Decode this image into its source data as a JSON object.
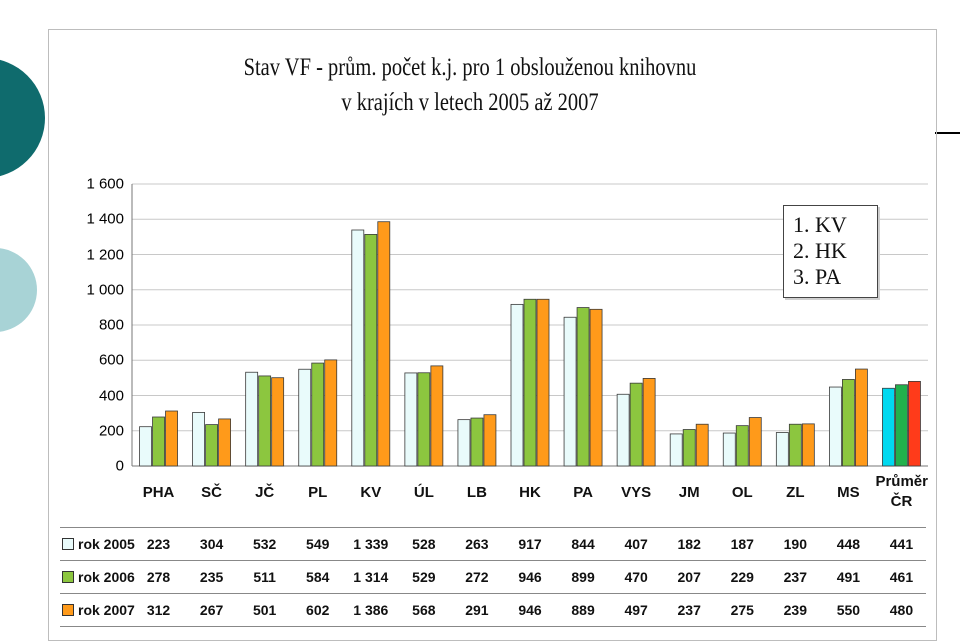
{
  "slide": {
    "title_line1": "Stav VF - prům. počet k.j. pro 1 obslouženou knihovnu",
    "title_line2": "v krajích v letech 2005 až 2007"
  },
  "ranking": [
    "1.  KV",
    "2.  HK",
    "3.  PA"
  ],
  "chart_data": {
    "type": "bar",
    "title": "Stav VF - prům. počet k.j. pro 1 obslouženou knihovnu v krajích v letech 2005 až 2007",
    "categories": [
      "PHA",
      "SČ",
      "JČ",
      "PL",
      "KV",
      "ÚL",
      "LB",
      "HK",
      "PA",
      "VYS",
      "JM",
      "OL",
      "ZL",
      "MS",
      "Průměr ČR"
    ],
    "y_ticks": [
      "0",
      "200",
      "400",
      "600",
      "800",
      "1 000",
      "1 200",
      "1 400",
      "1 600"
    ],
    "ylim": [
      0,
      1600
    ],
    "grid": true,
    "legend_placement": "data-table",
    "series": [
      {
        "name": "rok 2005",
        "color": "#e9fbfb",
        "avg_color": "#00d9f0",
        "values": [
          223,
          304,
          532,
          549,
          1339,
          528,
          263,
          917,
          844,
          407,
          182,
          187,
          190,
          448,
          441
        ],
        "labels": [
          "223",
          "304",
          "532",
          "549",
          "1 339",
          "528",
          "263",
          "917",
          "844",
          "407",
          "182",
          "187",
          "190",
          "448",
          "441"
        ]
      },
      {
        "name": "rok 2006",
        "color": "#8cc63f",
        "avg_color": "#22b14c",
        "values": [
          278,
          235,
          511,
          584,
          1314,
          529,
          272,
          946,
          899,
          470,
          207,
          229,
          237,
          491,
          461
        ],
        "labels": [
          "278",
          "235",
          "511",
          "584",
          "1 314",
          "529",
          "272",
          "946",
          "899",
          "470",
          "207",
          "229",
          "237",
          "491",
          "461"
        ]
      },
      {
        "name": "rok 2007",
        "color": "#ff9a1a",
        "avg_color": "#ff3b1a",
        "values": [
          312,
          267,
          501,
          602,
          1386,
          568,
          291,
          946,
          889,
          497,
          237,
          275,
          239,
          550,
          480
        ],
        "labels": [
          "312",
          "267",
          "501",
          "602",
          "1 386",
          "568",
          "291",
          "946",
          "889",
          "497",
          "237",
          "275",
          "239",
          "550",
          "480"
        ]
      }
    ]
  }
}
